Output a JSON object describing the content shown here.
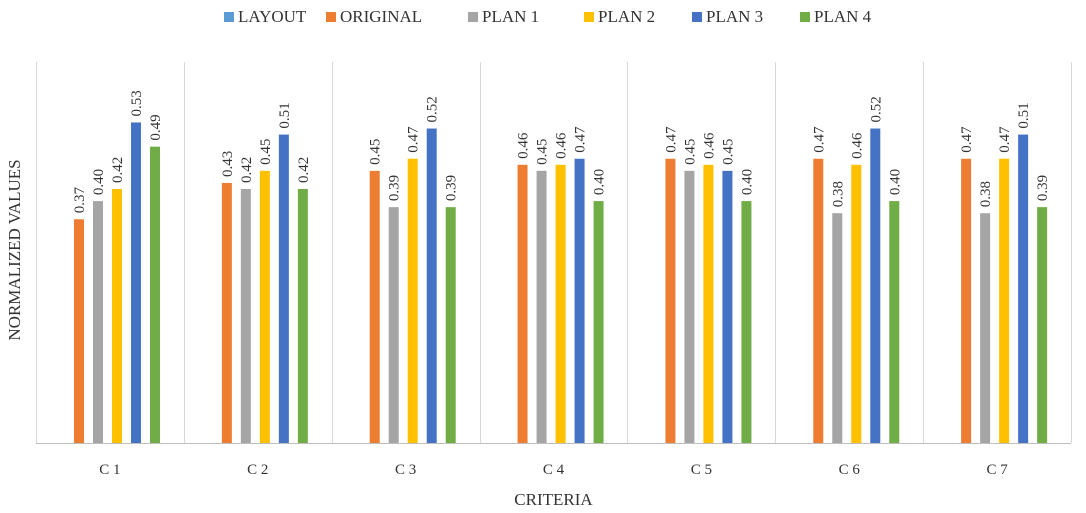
{
  "chart_data": {
    "type": "bar",
    "title": "",
    "xlabel": "CRITERIA",
    "ylabel": "NORMALIZED VALUES",
    "categories": [
      "C1",
      "C2",
      "C3",
      "C4",
      "C5",
      "C6",
      "C7"
    ],
    "ylim": [
      0,
      0.63
    ],
    "grid": "vertical separators between categories",
    "legend_position": "top",
    "series": [
      {
        "name": "LAYOUT",
        "color": "#5B9BD5",
        "values": [
          0,
          0,
          0,
          0,
          0,
          0,
          0
        ]
      },
      {
        "name": "ORIGINAL",
        "color": "#ED7D31",
        "values": [
          0.37,
          0.43,
          0.45,
          0.46,
          0.47,
          0.47,
          0.47
        ]
      },
      {
        "name": "PLAN 1",
        "color": "#A5A5A5",
        "values": [
          0.4,
          0.42,
          0.39,
          0.45,
          0.45,
          0.38,
          0.38
        ]
      },
      {
        "name": "PLAN 2",
        "color": "#FFC000",
        "values": [
          0.42,
          0.45,
          0.47,
          0.46,
          0.46,
          0.46,
          0.47
        ]
      },
      {
        "name": "PLAN 3",
        "color": "#4472C4",
        "values": [
          0.53,
          0.51,
          0.52,
          0.47,
          0.45,
          0.52,
          0.51
        ]
      },
      {
        "name": "PLAN 4",
        "color": "#70AD47",
        "values": [
          0.49,
          0.42,
          0.39,
          0.4,
          0.4,
          0.4,
          0.39
        ]
      }
    ],
    "data_labels": [
      [
        "",
        "0.37",
        "0.40",
        "0.42",
        "0.53",
        "0.49"
      ],
      [
        "",
        "0.43",
        "0.42",
        "0.45",
        "0.51",
        "0.42"
      ],
      [
        "",
        "0.45",
        "0.39",
        "0.47",
        "0.52",
        "0.39"
      ],
      [
        "",
        "0.46",
        "0.45",
        "0.46",
        "0.47",
        "0.40"
      ],
      [
        "",
        "0.47",
        "0.45",
        "0.46",
        "0.45",
        "0.40"
      ],
      [
        "",
        "0.47",
        "0.38",
        "0.46",
        "0.52",
        "0.40"
      ],
      [
        "",
        "0.47",
        "0.38",
        "0.47",
        "0.51",
        "0.39"
      ]
    ],
    "category_labels": [
      "C 1",
      "C 2",
      "C 3",
      "C 4",
      "C 5",
      "C 6",
      "C 7"
    ]
  }
}
